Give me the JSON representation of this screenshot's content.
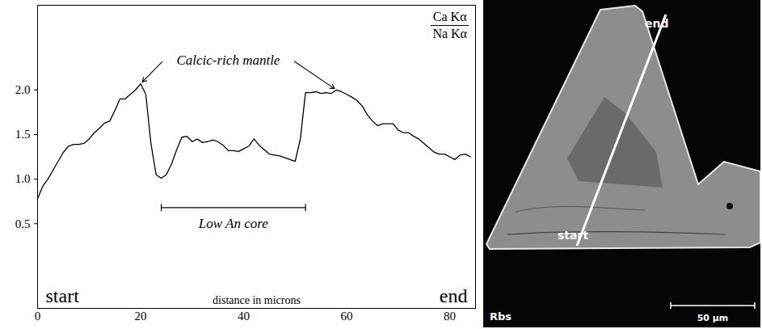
{
  "chart_data": {
    "type": "line",
    "x": [
      0,
      1,
      2,
      3,
      4,
      5,
      6,
      7,
      8,
      9,
      10,
      11,
      12,
      13,
      14,
      15,
      16,
      17,
      18,
      19,
      20,
      21,
      22,
      23,
      24,
      25,
      26,
      27,
      28,
      29,
      30,
      31,
      32,
      33,
      34,
      35,
      36,
      37,
      38,
      39,
      40,
      41,
      42,
      43,
      44,
      45,
      46,
      47,
      48,
      49,
      50,
      51,
      52,
      53,
      54,
      55,
      56,
      57,
      58,
      59,
      60,
      61,
      62,
      63,
      64,
      65,
      66,
      67,
      68,
      69,
      70,
      71,
      72,
      73,
      74,
      75,
      76,
      77,
      78,
      79,
      80,
      81,
      82,
      83,
      84
    ],
    "values": [
      0.78,
      0.92,
      1.0,
      1.1,
      1.2,
      1.3,
      1.37,
      1.39,
      1.39,
      1.4,
      1.45,
      1.52,
      1.57,
      1.63,
      1.65,
      1.77,
      1.9,
      1.9,
      1.95,
      2.0,
      2.07,
      1.95,
      1.4,
      1.05,
      1.01,
      1.05,
      1.17,
      1.33,
      1.47,
      1.48,
      1.42,
      1.45,
      1.41,
      1.42,
      1.44,
      1.42,
      1.38,
      1.32,
      1.32,
      1.31,
      1.34,
      1.37,
      1.45,
      1.38,
      1.33,
      1.28,
      1.27,
      1.26,
      1.24,
      1.22,
      1.2,
      1.45,
      1.97,
      1.97,
      1.98,
      1.96,
      1.97,
      1.96,
      2.0,
      1.98,
      1.95,
      1.92,
      1.88,
      1.82,
      1.72,
      1.65,
      1.6,
      1.62,
      1.62,
      1.62,
      1.55,
      1.52,
      1.52,
      1.48,
      1.45,
      1.4,
      1.35,
      1.3,
      1.28,
      1.28,
      1.25,
      1.22,
      1.27,
      1.28,
      1.25
    ],
    "color": "#000000",
    "xlim": [
      0,
      85
    ],
    "xticks": [
      0,
      20,
      40,
      60,
      80
    ],
    "ylim": [
      -0.45,
      2.95
    ],
    "yticks": [
      0.5,
      {
        "value": 1,
        "label": "1.0"
      },
      1.5,
      {
        "value": 2,
        "label": "2.0"
      }
    ],
    "xlabel": "distance in microns",
    "ylabel": {
      "numerator": "Ca Kα",
      "denominator": "Na Kα"
    },
    "x_end_labels": [
      "start",
      "end"
    ],
    "annotations": [
      {
        "text": "Calcic-rich mantle",
        "x": 37,
        "y": 2.33
      },
      {
        "text": "Low An core",
        "x_range": [
          24,
          52
        ],
        "y": 0.68
      }
    ],
    "grid": false
  },
  "image": {
    "detector": "Rbs",
    "traverse_labels": [
      "start",
      "end"
    ],
    "scale_bar": "50 µm"
  }
}
